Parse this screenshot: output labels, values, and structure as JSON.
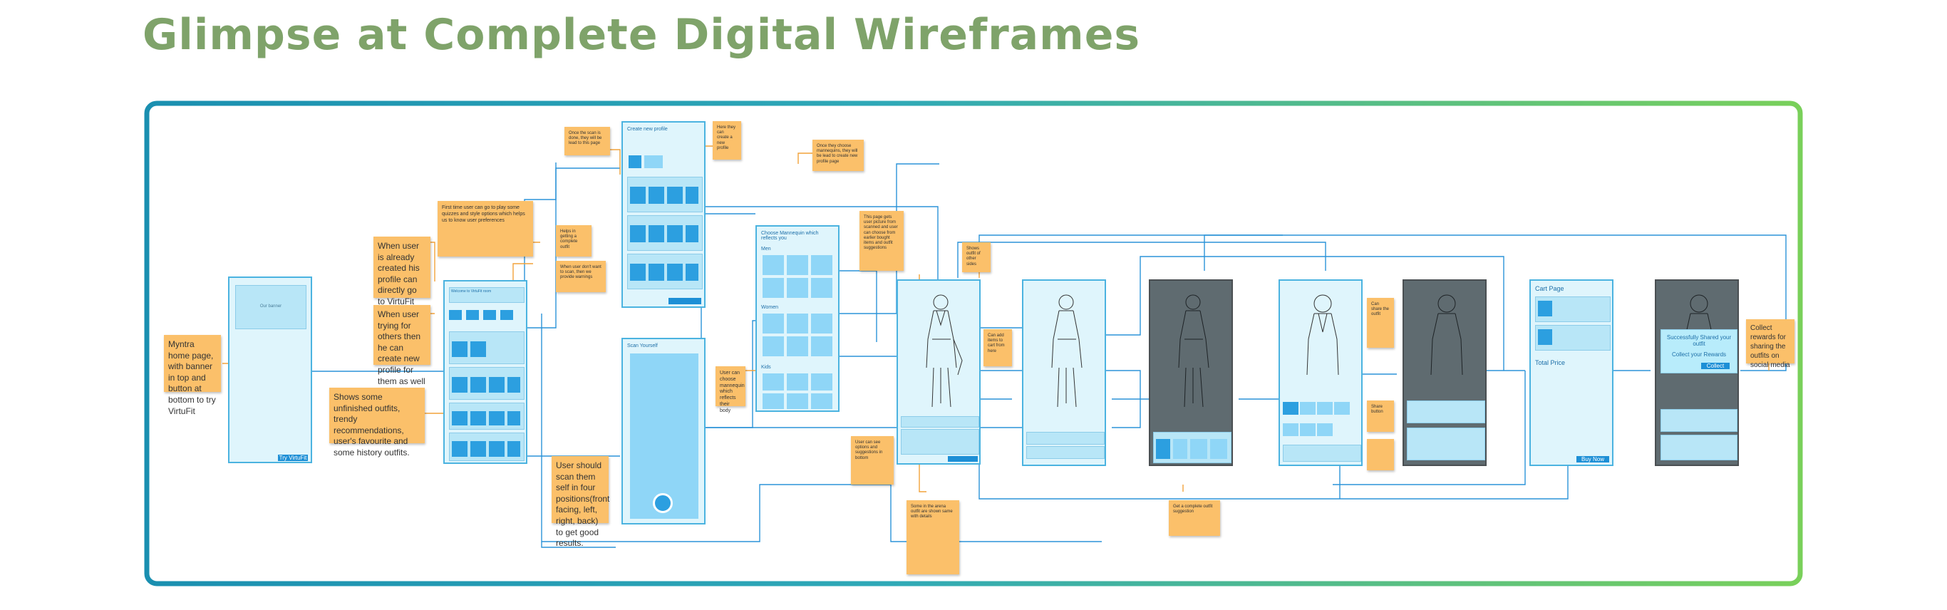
{
  "title": "Glimpse at Complete Digital Wireframes",
  "colors": {
    "title": "#7fa36a",
    "frame_start": "#1a8fb0",
    "frame_end": "#79d05a",
    "note": "#fbc06a",
    "screen": "#dff5fc",
    "accent": "#1d8fd6"
  },
  "notes": {
    "home": "Myntra home page, with banner in top and button at bottom to try VirtuFit",
    "already_created": "When user is already created his profile can directly go to VirtuFit room",
    "for_others": "When user trying for others then he can create new profile for them as well",
    "unfinished": "Shows some unfinished outfits, trendy recommendations, user's favourite and some history outfits.",
    "scan": "User should scan them self in four positions(front facing, left, right, back) to get good results.",
    "complete_outfit": "Helps in getting a complete outfit",
    "hover_msg": "When user don't want to scan, then we provide warnings",
    "quiz": "First time user can go to play some quizzes and style options which helps us to know user preferences",
    "profile_done": "Once the scan is done, they will be lead to this page",
    "new_profile": "Here they can create a new profile",
    "mannequin": "Once they choose mannequins, they will be lead to create new profile page",
    "choose_mannequin": "User can choose mannequin which reflects their body",
    "tryon": "This page gets user picture from scanned and user can choose from earlier bought items and outfit suggestions",
    "side": "Shows outfit of other sides",
    "cart_add": "Can add items to cart from here",
    "bottom_rec": "User can see options and suggestions in bottom",
    "some_outfit": "Some in the arena outfit are shown same with details",
    "suggestions": "Get a complete outfit suggestion",
    "share": "Can share the outfit",
    "rewards": "Collect rewards for sharing the outfits on social media",
    "share_small": "Share button"
  },
  "screens": {
    "home_banner": "Our banner",
    "home_button": "Try VirtuFit",
    "room_title": "Welcome to VirtuFit room",
    "profile_title": "Create new profile",
    "choose_title": "Choose Mannequin which reflects you",
    "choose_men": "Men",
    "choose_women": "Women",
    "choose_kids": "Kids",
    "scan_title": "Scan Yourself",
    "cart_title": "Cart Page",
    "cart_total": "Total Price",
    "cart_button": "Buy Now",
    "reward_title": "Successfully Shared your outfit",
    "reward_sub": "Collect your Rewards",
    "reward_button": "Collect"
  }
}
